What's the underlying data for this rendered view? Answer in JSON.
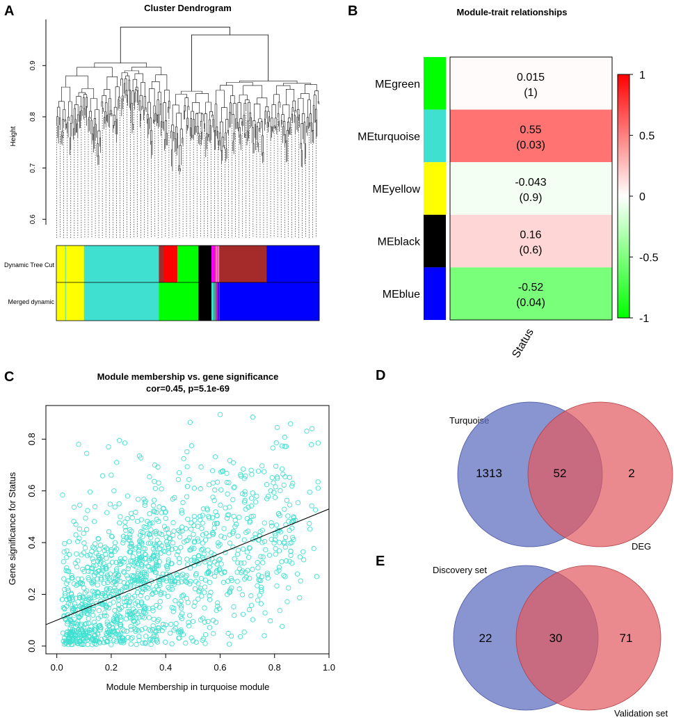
{
  "panel_labels": {
    "a": "A",
    "b": "B",
    "c": "C",
    "d": "D",
    "e": "E"
  },
  "colors": {
    "turquoise": "#40E0D0",
    "yellow": "#FFFF00",
    "green": "#00FF00",
    "red": "#FF0000",
    "brown": "#A52A2A",
    "black": "#000000",
    "blue": "#0000FF",
    "pink": "#FFC0CB",
    "magenta": "#FF00FF",
    "venn_blue": "#6272C2",
    "venn_red": "#E3595E"
  },
  "chart_data": [
    {
      "id": "dendrogram",
      "type": "dendrogram",
      "title": "Cluster Dendrogram",
      "ylabel": "Height",
      "yticks": [
        "0.6",
        "0.7",
        "0.8",
        "0.9"
      ],
      "ylim": [
        0.58,
        0.99
      ],
      "row_labels": [
        "Dynamic Tree Cut",
        "Merged dynamic"
      ],
      "dynamic_tree_cut": [
        {
          "color": "yellow",
          "start": 0.0,
          "end": 0.105
        },
        {
          "color": "turquoise",
          "start": 0.105,
          "end": 0.39
        },
        {
          "color": "brown",
          "start": 0.39,
          "end": 0.41
        },
        {
          "color": "red",
          "start": 0.41,
          "end": 0.46
        },
        {
          "color": "green",
          "start": 0.46,
          "end": 0.54
        },
        {
          "color": "black",
          "start": 0.54,
          "end": 0.59
        },
        {
          "color": "magenta",
          "start": 0.59,
          "end": 0.605
        },
        {
          "color": "pink",
          "start": 0.605,
          "end": 0.62
        },
        {
          "color": "brown",
          "start": 0.62,
          "end": 0.8
        },
        {
          "color": "blue",
          "start": 0.8,
          "end": 1.0
        }
      ],
      "merged_dynamic": [
        {
          "color": "yellow",
          "start": 0.0,
          "end": 0.105
        },
        {
          "color": "turquoise",
          "start": 0.105,
          "end": 0.39
        },
        {
          "color": "green",
          "start": 0.39,
          "end": 0.54
        },
        {
          "color": "black",
          "start": 0.54,
          "end": 0.59
        },
        {
          "color": "turquoise",
          "start": 0.59,
          "end": 0.61
        },
        {
          "color": "blue",
          "start": 0.61,
          "end": 1.0
        }
      ]
    },
    {
      "id": "heatmap",
      "type": "heatmap",
      "title": "Module-trait relationships",
      "xlabel": "Status",
      "legend_ticks": [
        "1",
        "0.5",
        "0",
        "-0.5",
        "-1"
      ],
      "legend_values": [
        1,
        0.5,
        0,
        -0.5,
        -1
      ],
      "rows": [
        {
          "label": "MEgreen",
          "module_color": "green",
          "cor": 0.015,
          "cor_text": "0.015",
          "p_text": "(1)"
        },
        {
          "label": "MEturquoise",
          "module_color": "turquoise",
          "cor": 0.55,
          "cor_text": "0.55",
          "p_text": "(0.03)"
        },
        {
          "label": "MEyellow",
          "module_color": "yellow",
          "cor": -0.043,
          "cor_text": "-0.043",
          "p_text": "(0.9)"
        },
        {
          "label": "MEblack",
          "module_color": "black",
          "cor": 0.16,
          "cor_text": "0.16",
          "p_text": "(0.6)"
        },
        {
          "label": "MEblue",
          "module_color": "blue",
          "cor": -0.52,
          "cor_text": "-0.52",
          "p_text": "(0.04)"
        }
      ]
    },
    {
      "id": "scatter",
      "type": "scatter",
      "title": "Module membership vs. gene significance",
      "subtitle": "cor=0.45, p=5.1e-69",
      "xlabel": "Module Membership in turquoise module",
      "ylabel": "Gene significance for Status",
      "xlim": [
        -0.04,
        1.0
      ],
      "ylim": [
        -0.03,
        0.93
      ],
      "xticks": [
        0.0,
        0.2,
        0.4,
        0.6,
        0.8,
        1.0
      ],
      "xtick_labels": [
        "0.0",
        "0.2",
        "0.4",
        "0.6",
        "0.8",
        "1.0"
      ],
      "yticks": [
        0.0,
        0.2,
        0.4,
        0.6,
        0.8
      ],
      "ytick_labels": [
        "0.0",
        "0.2",
        "0.4",
        "0.6",
        "0.8"
      ],
      "fit_line": {
        "intercept": 0.1,
        "slope": 0.43
      },
      "n_points": 1365,
      "point_color": "turquoise",
      "points": [
        [
          0.08,
          0.78
        ],
        [
          0.11,
          0.745
        ],
        [
          0.23,
          0.795
        ],
        [
          0.25,
          0.785
        ],
        [
          0.19,
          0.77
        ],
        [
          0.22,
          0.71
        ],
        [
          0.6,
          0.895
        ],
        [
          0.49,
          0.865
        ],
        [
          0.72,
          0.885
        ],
        [
          0.81,
          0.845
        ],
        [
          0.02,
          0.18
        ],
        [
          0.07,
          0.47
        ],
        [
          0.07,
          0.43
        ],
        [
          0.05,
          0.1
        ],
        [
          0.04,
          0.29
        ],
        [
          0.13,
          0.3
        ],
        [
          0.21,
          0.6
        ],
        [
          0.26,
          0.58
        ],
        [
          0.36,
          0.7
        ],
        [
          0.15,
          0.05
        ]
      ]
    },
    {
      "id": "venn_d",
      "type": "venn",
      "sets": [
        "Turquoise",
        "DEG"
      ],
      "only_a": "1313",
      "both": "52",
      "only_b": "2"
    },
    {
      "id": "venn_e",
      "type": "venn",
      "sets": [
        "Discovery set",
        "Validation set"
      ],
      "only_a": "22",
      "both": "30",
      "only_b": "71"
    }
  ]
}
